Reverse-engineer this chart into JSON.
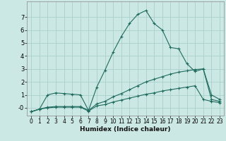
{
  "xlabel": "Humidex (Indice chaleur)",
  "background_color": "#cce8e4",
  "grid_color": "#aacfcb",
  "line_color": "#1e6b5e",
  "xlim": [
    -0.5,
    23.5
  ],
  "ylim": [
    -0.6,
    8.2
  ],
  "xticks": [
    0,
    1,
    2,
    3,
    4,
    5,
    6,
    7,
    8,
    9,
    10,
    11,
    12,
    13,
    14,
    15,
    16,
    17,
    18,
    19,
    20,
    21,
    22,
    23
  ],
  "ytick_vals": [
    0,
    1,
    2,
    3,
    4,
    5,
    6,
    7
  ],
  "ytick_labels": [
    "-0",
    "1",
    "2",
    "3",
    "4",
    "5",
    "6",
    "7"
  ],
  "series1_x": [
    0,
    1,
    2,
    3,
    4,
    5,
    6,
    7,
    8,
    9,
    10,
    11,
    12,
    13,
    14,
    15,
    16,
    17,
    18,
    19,
    20,
    21,
    22,
    23
  ],
  "series1_y": [
    -0.3,
    -0.1,
    1.0,
    1.15,
    1.1,
    1.05,
    1.0,
    -0.2,
    1.6,
    2.9,
    4.3,
    5.5,
    6.5,
    7.2,
    7.5,
    6.5,
    6.0,
    4.65,
    4.55,
    3.4,
    2.8,
    3.0,
    1.0,
    0.65
  ],
  "series2_x": [
    0,
    1,
    2,
    3,
    4,
    5,
    6,
    7,
    8,
    9,
    10,
    11,
    12,
    13,
    14,
    15,
    16,
    17,
    18,
    19,
    20,
    21,
    22,
    23
  ],
  "series2_y": [
    -0.3,
    -0.1,
    0.05,
    0.1,
    0.1,
    0.1,
    0.1,
    -0.2,
    0.3,
    0.5,
    0.85,
    1.1,
    1.4,
    1.7,
    2.0,
    2.2,
    2.4,
    2.6,
    2.75,
    2.85,
    2.95,
    3.0,
    0.65,
    0.5
  ],
  "series3_x": [
    0,
    1,
    2,
    3,
    4,
    5,
    6,
    7,
    8,
    9,
    10,
    11,
    12,
    13,
    14,
    15,
    16,
    17,
    18,
    19,
    20,
    21,
    22,
    23
  ],
  "series3_y": [
    -0.3,
    -0.1,
    0.0,
    0.05,
    0.05,
    0.05,
    0.05,
    -0.25,
    0.15,
    0.25,
    0.45,
    0.6,
    0.75,
    0.9,
    1.05,
    1.15,
    1.3,
    1.4,
    1.5,
    1.6,
    1.7,
    0.65,
    0.5,
    0.4
  ]
}
